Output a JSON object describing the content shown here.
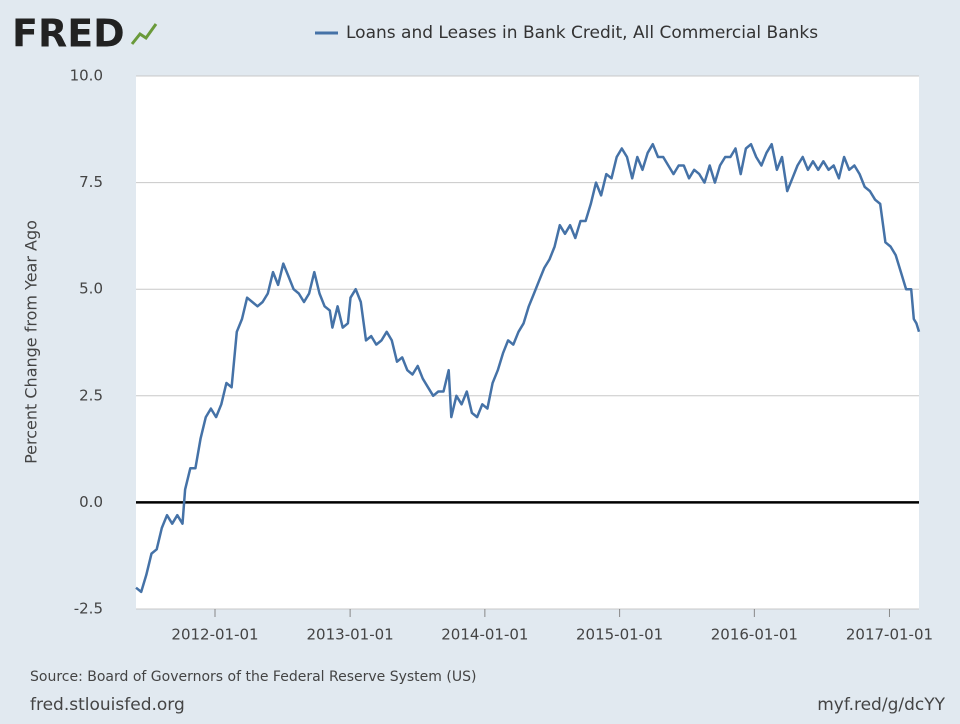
{
  "logo": "FRED",
  "chart_data": {
    "type": "line",
    "y_label": "Percent Change from Year Ago",
    "source": "Source: Board of Governors of the Federal Reserve System (US)",
    "site": "fred.stlouisfed.org",
    "short_url": "myf.red/g/dcYY",
    "xlim": [
      "2011-06-01",
      "2017-03-22"
    ],
    "xticks": [
      "2012-01-01",
      "2013-01-01",
      "2014-01-01",
      "2015-01-01",
      "2016-01-01",
      "2017-01-01"
    ],
    "ylim": [
      -2.5,
      10
    ],
    "yticks": [
      -2.5,
      {
        "value": 0,
        "label": "0.0"
      },
      2.5,
      {
        "value": 5,
        "label": "5.0"
      },
      7.5,
      {
        "value": 10,
        "label": "10.0"
      }
    ],
    "grid": true,
    "zero_line": true,
    "x": [
      "2011-06-01",
      "2011-06-15",
      "2011-06-29",
      "2011-07-13",
      "2011-07-27",
      "2011-08-10",
      "2011-08-24",
      "2011-09-07",
      "2011-09-21",
      "2011-10-05",
      "2011-10-12",
      "2011-10-26",
      "2011-11-09",
      "2011-11-23",
      "2011-12-07",
      "2011-12-21",
      "2012-01-04",
      "2012-01-18",
      "2012-02-01",
      "2012-02-15",
      "2012-02-29",
      "2012-03-14",
      "2012-03-28",
      "2012-04-11",
      "2012-04-25",
      "2012-05-09",
      "2012-05-23",
      "2012-06-06",
      "2012-06-20",
      "2012-07-04",
      "2012-07-18",
      "2012-08-01",
      "2012-08-15",
      "2012-08-29",
      "2012-09-12",
      "2012-09-26",
      "2012-10-10",
      "2012-10-24",
      "2012-11-07",
      "2012-11-14",
      "2012-11-28",
      "2012-12-12",
      "2012-12-26",
      "2013-01-02",
      "2013-01-16",
      "2013-01-30",
      "2013-02-13",
      "2013-02-27",
      "2013-03-13",
      "2013-03-27",
      "2013-04-10",
      "2013-04-24",
      "2013-05-08",
      "2013-05-22",
      "2013-06-05",
      "2013-06-19",
      "2013-07-03",
      "2013-07-17",
      "2013-07-31",
      "2013-08-14",
      "2013-08-28",
      "2013-09-11",
      "2013-09-25",
      "2013-10-02",
      "2013-10-16",
      "2013-10-30",
      "2013-11-13",
      "2013-11-27",
      "2013-12-11",
      "2013-12-25",
      "2014-01-08",
      "2014-01-22",
      "2014-02-05",
      "2014-02-19",
      "2014-03-05",
      "2014-03-19",
      "2014-04-02",
      "2014-04-16",
      "2014-04-30",
      "2014-05-14",
      "2014-05-28",
      "2014-06-11",
      "2014-06-25",
      "2014-07-09",
      "2014-07-23",
      "2014-08-06",
      "2014-08-20",
      "2014-09-03",
      "2014-09-17",
      "2014-10-01",
      "2014-10-15",
      "2014-10-29",
      "2014-11-12",
      "2014-11-26",
      "2014-12-10",
      "2014-12-24",
      "2015-01-07",
      "2015-01-21",
      "2015-02-04",
      "2015-02-18",
      "2015-03-04",
      "2015-03-18",
      "2015-04-01",
      "2015-04-15",
      "2015-04-29",
      "2015-05-13",
      "2015-05-27",
      "2015-06-10",
      "2015-06-24",
      "2015-07-08",
      "2015-07-22",
      "2015-08-05",
      "2015-08-19",
      "2015-09-02",
      "2015-09-16",
      "2015-09-30",
      "2015-10-14",
      "2015-10-28",
      "2015-11-11",
      "2015-11-25",
      "2015-12-09",
      "2015-12-23",
      "2016-01-06",
      "2016-01-20",
      "2016-02-03",
      "2016-02-17",
      "2016-03-02",
      "2016-03-16",
      "2016-03-30",
      "2016-04-13",
      "2016-04-27",
      "2016-05-11",
      "2016-05-25",
      "2016-06-08",
      "2016-06-22",
      "2016-07-06",
      "2016-07-20",
      "2016-08-03",
      "2016-08-17",
      "2016-08-31",
      "2016-09-14",
      "2016-09-28",
      "2016-10-12",
      "2016-10-26",
      "2016-11-09",
      "2016-11-23",
      "2016-12-07",
      "2016-12-21",
      "2017-01-04",
      "2017-01-18",
      "2017-02-01",
      "2017-02-15",
      "2017-03-01",
      "2017-03-08",
      "2017-03-15",
      "2017-03-22"
    ],
    "series": [
      {
        "name": "Loans and Leases in Bank Credit, All Commercial Banks",
        "color": "#4572a7",
        "values": [
          -2.0,
          -2.1,
          -1.7,
          -1.2,
          -1.1,
          -0.6,
          -0.3,
          -0.5,
          -0.3,
          -0.5,
          0.3,
          0.8,
          0.8,
          1.5,
          2.0,
          2.2,
          2.0,
          2.3,
          2.8,
          2.7,
          4.0,
          4.3,
          4.8,
          4.7,
          4.6,
          4.7,
          4.9,
          5.4,
          5.1,
          5.6,
          5.3,
          5.0,
          4.9,
          4.7,
          4.9,
          5.4,
          4.9,
          4.6,
          4.5,
          4.1,
          4.6,
          4.1,
          4.2,
          4.8,
          5.0,
          4.7,
          3.8,
          3.9,
          3.7,
          3.8,
          4.0,
          3.8,
          3.3,
          3.4,
          3.1,
          3.0,
          3.2,
          2.9,
          2.7,
          2.5,
          2.6,
          2.6,
          3.1,
          2.0,
          2.5,
          2.3,
          2.6,
          2.1,
          2.0,
          2.3,
          2.2,
          2.8,
          3.1,
          3.5,
          3.8,
          3.7,
          4.0,
          4.2,
          4.6,
          4.9,
          5.2,
          5.5,
          5.7,
          6.0,
          6.5,
          6.3,
          6.5,
          6.2,
          6.6,
          6.6,
          7.0,
          7.5,
          7.2,
          7.7,
          7.6,
          8.1,
          8.3,
          8.1,
          7.6,
          8.1,
          7.8,
          8.2,
          8.4,
          8.1,
          8.1,
          7.9,
          7.7,
          7.9,
          7.9,
          7.6,
          7.8,
          7.7,
          7.5,
          7.9,
          7.5,
          7.9,
          8.1,
          8.1,
          8.3,
          7.7,
          8.3,
          8.4,
          8.1,
          7.9,
          8.2,
          8.4,
          7.8,
          8.1,
          7.3,
          7.6,
          7.9,
          8.1,
          7.8,
          8.0,
          7.8,
          8.0,
          7.8,
          7.9,
          7.6,
          8.1,
          7.8,
          7.9,
          7.7,
          7.4,
          7.3,
          7.1,
          7.0,
          6.1,
          6.0,
          5.8,
          5.4,
          5.0,
          5.0,
          4.3,
          4.2,
          4.0
        ]
      }
    ]
  }
}
